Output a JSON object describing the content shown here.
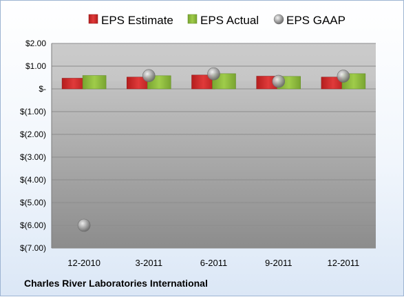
{
  "company": "Charles River Laboratories International",
  "legend": [
    {
      "label": "EPS Estimate",
      "icon": "red-cube-icon"
    },
    {
      "label": "EPS Actual",
      "icon": "green-cube-icon"
    },
    {
      "label": "EPS GAAP",
      "icon": "gray-sphere-icon"
    }
  ],
  "colors": {
    "estimate": "#d42a2a",
    "actual": "#8cb83c",
    "gaap": "#9a9a9a",
    "plot_top": "#c8c8c8",
    "plot_bottom": "#8a8a8a",
    "grid": "#8c8c8c"
  },
  "chart_data": {
    "type": "bar",
    "categories": [
      "12-2010",
      "3-2011",
      "6-2011",
      "9-2011",
      "12-2011"
    ],
    "series": [
      {
        "name": "EPS Estimate",
        "values": [
          0.47,
          0.52,
          0.61,
          0.56,
          0.52
        ]
      },
      {
        "name": "EPS Actual",
        "values": [
          0.59,
          0.58,
          0.67,
          0.55,
          0.67
        ]
      },
      {
        "name": "EPS GAAP",
        "kind": "marker",
        "values": [
          -6.0,
          0.58,
          0.66,
          0.33,
          0.56
        ]
      }
    ],
    "ylim": [
      -7,
      2
    ],
    "yticks": [
      2,
      1,
      0,
      -1,
      -2,
      -3,
      -4,
      -5,
      -6,
      -7
    ],
    "ytick_labels": [
      "$2.00",
      "$1.00",
      "$-",
      "$(1.00)",
      "$(2.00)",
      "$(3.00)",
      "$(4.00)",
      "$(5.00)",
      "$(6.00)",
      "$(7.00)"
    ],
    "grid": true,
    "legend_position": "top"
  }
}
